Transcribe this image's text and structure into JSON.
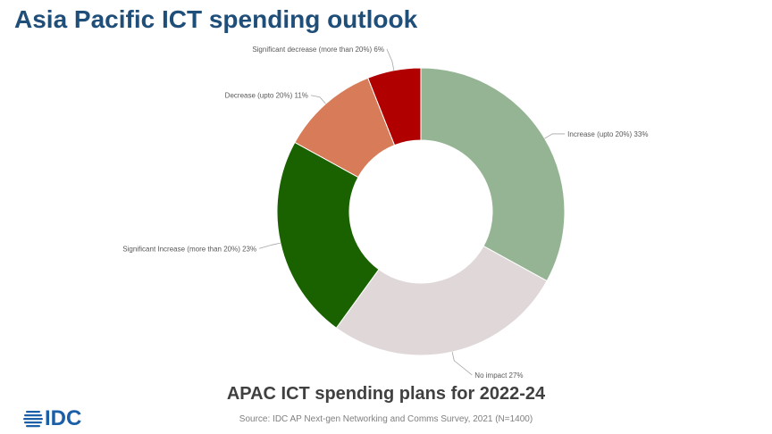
{
  "page": {
    "title": "Asia Pacific ICT spending outlook",
    "caption": "APAC ICT spending plans for 2022-24",
    "source": "Source: IDC AP Next-gen Networking and Comms Survey, 2021 (N=1400)",
    "logo_text": "IDC"
  },
  "chart_data": {
    "type": "pie",
    "donut": true,
    "title": "",
    "slices": [
      {
        "label": "Increase (upto 20%)",
        "value": 33,
        "display": "Increase (upto 20%) 33%",
        "color": "#94b494"
      },
      {
        "label": "No impact",
        "value": 27,
        "display": "No impact 27%",
        "color": "#e0d8d8"
      },
      {
        "label": "Significant Increase (more than 20%)",
        "value": 23,
        "display": "Significant Increase (more than 20%) 23%",
        "color": "#1a6200"
      },
      {
        "label": "Decrease (upto 20%)",
        "value": 11,
        "display": "Decrease (upto 20%) 11%",
        "color": "#d77b58"
      },
      {
        "label": "Significant decrease (more than 20%)",
        "value": 6,
        "display": "Significant decrease (more than 20%) 6%",
        "color": "#b00000"
      }
    ],
    "legend": "none"
  }
}
